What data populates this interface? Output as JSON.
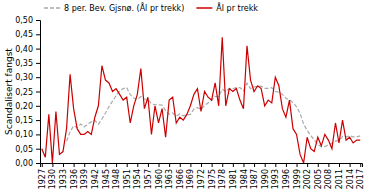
{
  "chart_data": {
    "type": "line",
    "ylabel": "Scandalisert fangst",
    "x": [
      1927,
      1928,
      1929,
      1930,
      1931,
      1932,
      1933,
      1934,
      1935,
      1936,
      1937,
      1938,
      1939,
      1940,
      1941,
      1942,
      1943,
      1944,
      1945,
      1946,
      1947,
      1948,
      1949,
      1950,
      1951,
      1952,
      1953,
      1954,
      1955,
      1956,
      1957,
      1958,
      1959,
      1960,
      1961,
      1962,
      1963,
      1964,
      1965,
      1966,
      1967,
      1968,
      1969,
      1970,
      1971,
      1972,
      1973,
      1974,
      1975,
      1976,
      1977,
      1978,
      1979,
      1980,
      1981,
      1982,
      1983,
      1984,
      1985,
      1986,
      1987,
      1988,
      1989,
      1990,
      1991,
      1992,
      1993,
      1994,
      1995,
      1996,
      1997,
      1998,
      1999,
      2000,
      2001,
      2002,
      2003,
      2004,
      2005,
      2006,
      2007,
      2008,
      2009,
      2010,
      2011,
      2012,
      2013,
      2014,
      2015,
      2016,
      2017
    ],
    "series": [
      {
        "name": "8 per. Bev. Gjsnø. (Ål pr trekk)",
        "color": "#aaaaaa",
        "line_style": "dashed",
        "values": [
          null,
          null,
          null,
          null,
          null,
          null,
          null,
          0.07625,
          0.10875,
          0.13,
          0.12375,
          0.13625,
          0.12625,
          0.13625,
          0.14375,
          0.14875,
          0.135,
          0.15375,
          0.175,
          0.1975,
          0.21625,
          0.235,
          0.2525,
          0.26,
          0.26375,
          0.23875,
          0.2275,
          0.2225,
          0.2325,
          0.22375,
          0.2225,
          0.2075,
          0.20375,
          0.20375,
          0.2025,
          0.18375,
          0.17,
          0.175,
          0.16375,
          0.17125,
          0.165,
          0.16875,
          0.17,
          0.18875,
          0.19375,
          0.1875,
          0.20125,
          0.21,
          0.21875,
          0.2325,
          0.2325,
          0.2575,
          0.25,
          0.26,
          0.26,
          0.26375,
          0.26375,
          0.2525,
          0.27875,
          0.26,
          0.26625,
          0.2675,
          0.26875,
          0.26125,
          0.26125,
          0.26375,
          0.25,
          0.2475,
          0.24,
          0.22625,
          0.22125,
          0.21125,
          0.19625,
          0.17375,
          0.13625,
          0.11375,
          0.09625,
          0.08125,
          0.065,
          0.0575,
          0.0575,
          0.06375,
          0.07,
          0.07625,
          0.07875,
          0.0925,
          0.09125,
          0.095,
          0.09125,
          0.09125,
          0.095
        ]
      },
      {
        "name": "Ål pr trekk",
        "color": "#cc0000",
        "line_style": "solid",
        "values": [
          0.05,
          0.02,
          0.17,
          0.0,
          0.18,
          0.03,
          0.04,
          0.12,
          0.31,
          0.19,
          0.12,
          0.1,
          0.1,
          0.11,
          0.1,
          0.16,
          0.2,
          0.34,
          0.29,
          0.28,
          0.25,
          0.26,
          0.24,
          0.22,
          0.23,
          0.14,
          0.2,
          0.24,
          0.33,
          0.19,
          0.23,
          0.1,
          0.2,
          0.14,
          0.19,
          0.09,
          0.22,
          0.23,
          0.14,
          0.16,
          0.15,
          0.17,
          0.2,
          0.24,
          0.26,
          0.18,
          0.25,
          0.23,
          0.22,
          0.28,
          0.2,
          0.44,
          0.2,
          0.26,
          0.25,
          0.26,
          0.22,
          0.19,
          0.41,
          0.29,
          0.25,
          0.27,
          0.26,
          0.2,
          0.22,
          0.21,
          0.3,
          0.27,
          0.19,
          0.16,
          0.22,
          0.12,
          0.1,
          0.03,
          0.0,
          0.09,
          0.05,
          0.04,
          0.09,
          0.06,
          0.1,
          0.08,
          0.05,
          0.14,
          0.07,
          0.15,
          0.08,
          0.09,
          0.07,
          0.08,
          0.08
        ]
      }
    ],
    "xlim": [
      1926.5,
      2017.5
    ],
    "xticks": [
      1927,
      1930,
      1933,
      1936,
      1939,
      1942,
      1945,
      1948,
      1951,
      1954,
      1957,
      1960,
      1963,
      1966,
      1969,
      1972,
      1975,
      1978,
      1981,
      1984,
      1987,
      1990,
      1993,
      1996,
      1999,
      2002,
      2005,
      2008,
      2011,
      2014,
      2017
    ],
    "ylim": [
      0.0,
      0.5
    ],
    "yticks": [
      {
        "value": 0.0,
        "label": "0,00"
      },
      {
        "value": 0.05,
        "label": "0,05"
      },
      {
        "value": 0.1,
        "label": "0,10"
      },
      {
        "value": 0.15,
        "label": "0,15"
      },
      {
        "value": 0.2,
        "label": "0,20"
      },
      {
        "value": 0.25,
        "label": "0,25"
      },
      {
        "value": 0.3,
        "label": "0,30"
      },
      {
        "value": 0.35,
        "label": "0,35"
      },
      {
        "value": 0.4,
        "label": "0,40"
      },
      {
        "value": 0.45,
        "label": "0,45"
      },
      {
        "value": 0.5,
        "label": "0,50"
      }
    ],
    "grid": false,
    "legend": "upper left"
  }
}
